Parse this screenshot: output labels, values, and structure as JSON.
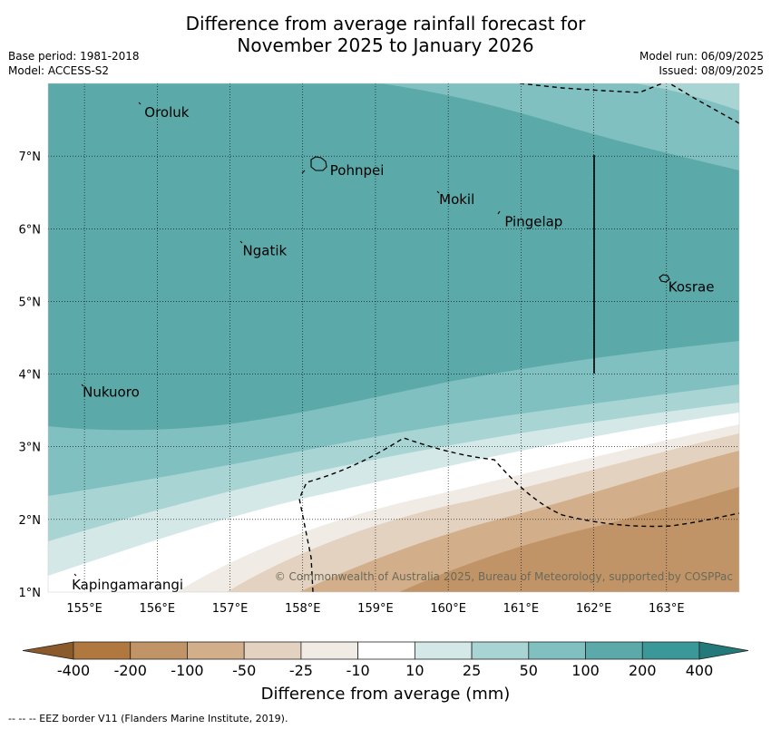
{
  "title": {
    "line1": "Difference from average rainfall forecast for",
    "line2": "November 2025 to January 2026"
  },
  "meta": {
    "base_period": "Base period: 1981-2018",
    "model": "Model: ACCESS-S2",
    "model_run": "Model run: 06/09/2025",
    "issued": "Issued: 08/09/2025"
  },
  "map": {
    "lon_range": [
      154.5,
      164.0
    ],
    "lat_range": [
      1.0,
      8.0
    ],
    "lon_ticks": [
      "155°E",
      "156°E",
      "157°E",
      "158°E",
      "159°E",
      "160°E",
      "161°E",
      "162°E",
      "163°E"
    ],
    "lat_ticks": [
      "1°N",
      "2°N",
      "3°N",
      "4°N",
      "5°N",
      "6°N",
      "7°N"
    ],
    "places": [
      {
        "name": "Oroluk",
        "lon": 155.8,
        "lat": 7.6
      },
      {
        "name": "Pohnpei",
        "lon": 158.35,
        "lat": 6.8
      },
      {
        "name": "Mokil",
        "lon": 159.85,
        "lat": 6.4
      },
      {
        "name": "Pingelap",
        "lon": 160.75,
        "lat": 6.1
      },
      {
        "name": "Ngatik",
        "lon": 157.15,
        "lat": 5.7
      },
      {
        "name": "Kosrae",
        "lon": 163.0,
        "lat": 5.2
      },
      {
        "name": "Nukuoro",
        "lon": 154.95,
        "lat": 3.75
      },
      {
        "name": "Kapingamarangi",
        "lon": 154.8,
        "lat": 1.1
      }
    ],
    "copyright": "© Commonwealth of Australia 2025, Bureau of Meteorology, supported by COSPPac"
  },
  "colorbar": {
    "ticks": [
      "-400",
      "-200",
      "-100",
      "-50",
      "-25",
      "-10",
      "10",
      "25",
      "50",
      "100",
      "200",
      "400"
    ],
    "colors": {
      "below_min": "#8a5a2a",
      "b1": "#b0783e",
      "b2": "#c09466",
      "b3": "#d2af8a",
      "b4": "#e4d2c0",
      "b5": "#f1ebe5",
      "b6": "#ffffff",
      "b7": "#d4e8e8",
      "b8": "#a9d4d4",
      "b9": "#80c0c0",
      "b10": "#5ba9a9",
      "b11": "#3a9898",
      "above_max": "#247a7a"
    },
    "label": "Difference from average (mm)"
  },
  "footnote": "--  --  -- EEZ border V11 (Flanders Marine Institute, 2019)."
}
